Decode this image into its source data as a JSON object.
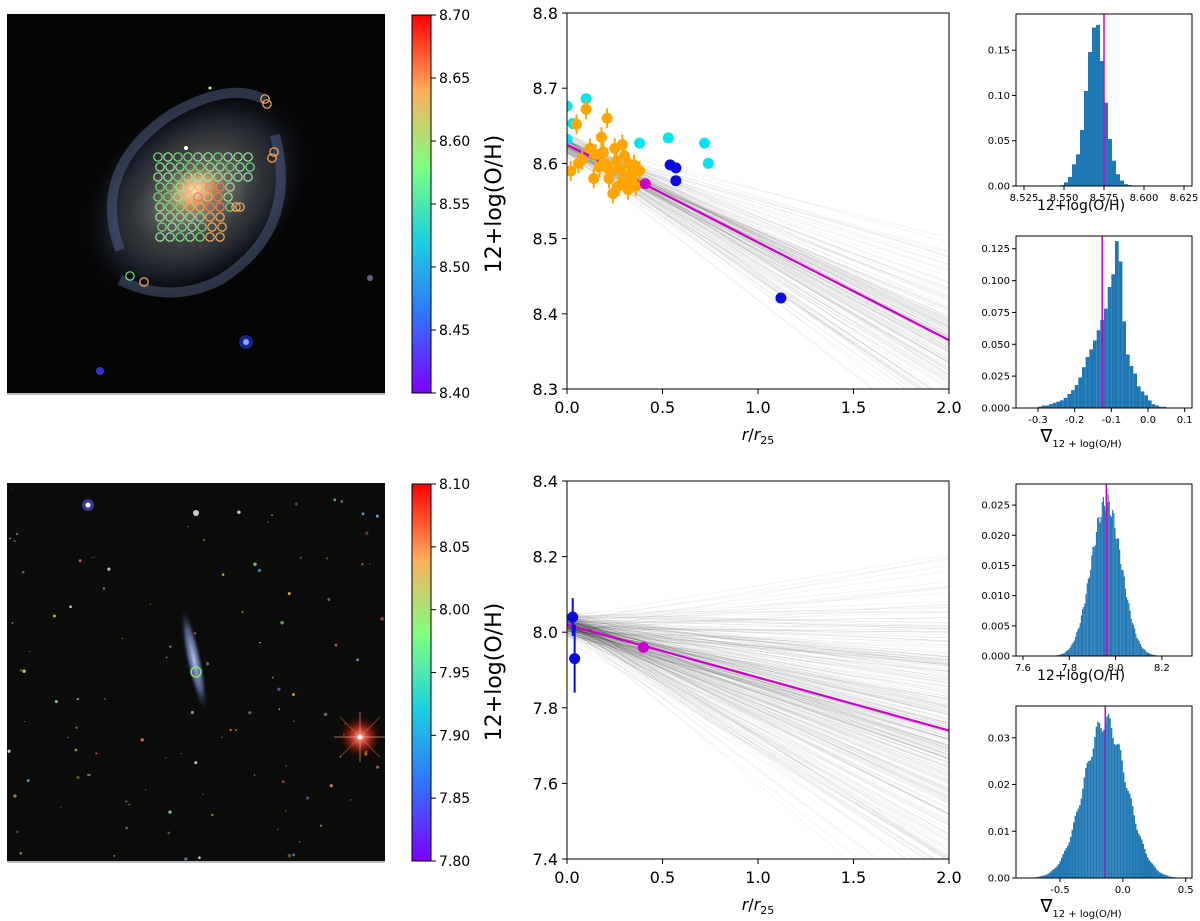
{
  "colorbar_top": {
    "label": "12+log(O/H)",
    "ticks": [
      "8.40",
      "8.45",
      "8.50",
      "8.55",
      "8.60",
      "8.65",
      "8.70"
    ],
    "range": [
      8.4,
      8.7
    ]
  },
  "colorbar_bottom": {
    "label": "12+log(O/H)",
    "ticks": [
      "7.80",
      "7.85",
      "7.90",
      "7.95",
      "8.00",
      "8.05",
      "8.10"
    ],
    "range": [
      7.8,
      8.1
    ]
  },
  "colors": {
    "magenta": "#cc00cc",
    "orange": "#ffa500",
    "cyan": "#00e5ee",
    "blue": "#0a0adf",
    "hist": "#1f77b4"
  },
  "chart_data": [
    {
      "id": "gradient_top",
      "type": "scatter",
      "xlabel": "r/r25",
      "ylabel": "",
      "xlim": [
        0,
        2.0
      ],
      "ylim": [
        8.3,
        8.8
      ],
      "xticks": [
        "0.0",
        "0.5",
        "1.0",
        "1.5",
        "2.0"
      ],
      "yticks": [
        "8.3",
        "8.4",
        "8.5",
        "8.6",
        "8.7",
        "8.8"
      ],
      "fit": {
        "intercept": 8.625,
        "slope": -0.13,
        "color": "magenta"
      },
      "mc_lines": {
        "intercept_mean": 8.625,
        "intercept_sd": 0.012,
        "slope_mean": -0.13,
        "slope_sd": 0.05,
        "count": 160
      },
      "binned_point": {
        "x": 0.41,
        "y": 8.573
      },
      "series": [
        {
          "name": "cyan",
          "points": [
            [
              0.0,
              8.676
            ],
            [
              0.1,
              8.686
            ],
            [
              0.03,
              8.653
            ],
            [
              0.53,
              8.634
            ],
            [
              0.72,
              8.627
            ],
            [
              0.74,
              8.6
            ],
            [
              0.38,
              8.627
            ],
            [
              0.0,
              8.632
            ]
          ]
        },
        {
          "name": "blue",
          "points": [
            [
              0.54,
              8.598
            ],
            [
              0.57,
              8.594
            ],
            [
              0.57,
              8.577
            ],
            [
              1.12,
              8.421
            ]
          ]
        },
        {
          "name": "orange",
          "points": [
            [
              0.05,
              8.652
            ],
            [
              0.1,
              8.672
            ],
            [
              0.12,
              8.62
            ],
            [
              0.15,
              8.612
            ],
            [
              0.18,
              8.635
            ],
            [
              0.2,
              8.6
            ],
            [
              0.21,
              8.66
            ],
            [
              0.22,
              8.58
            ],
            [
              0.25,
              8.62
            ],
            [
              0.26,
              8.603
            ],
            [
              0.28,
              8.592
            ],
            [
              0.3,
              8.61
            ],
            [
              0.3,
              8.575
            ],
            [
              0.32,
              8.6
            ],
            [
              0.33,
              8.585
            ],
            [
              0.35,
              8.598
            ],
            [
              0.27,
              8.57
            ],
            [
              0.24,
              8.56
            ],
            [
              0.32,
              8.565
            ],
            [
              0.34,
              8.58
            ],
            [
              0.17,
              8.595
            ],
            [
              0.08,
              8.605
            ],
            [
              0.02,
              8.59
            ],
            [
              0.06,
              8.6
            ],
            [
              0.14,
              8.58
            ],
            [
              0.38,
              8.59
            ],
            [
              0.29,
              8.625
            ],
            [
              0.19,
              8.615
            ],
            [
              0.36,
              8.57
            ],
            [
              0.23,
              8.59
            ]
          ]
        }
      ]
    },
    {
      "id": "hist_top_oh",
      "type": "bar",
      "xlabel": "12+log(O/H)",
      "xlim": [
        8.52,
        8.63
      ],
      "ylim": [
        0,
        0.19
      ],
      "xticks": [
        "8.525",
        "8.550",
        "8.575",
        "8.600",
        "8.625"
      ],
      "yticks": [
        "0.00",
        "0.05",
        "0.10",
        "0.15"
      ],
      "marker": 8.575,
      "bin_start": 8.5475,
      "bin_width": 0.0025,
      "values": [
        0.001,
        0.004,
        0.01,
        0.024,
        0.035,
        0.062,
        0.105,
        0.148,
        0.175,
        0.178,
        0.138,
        0.092,
        0.052,
        0.028,
        0.013,
        0.006,
        0.002,
        0.001
      ]
    },
    {
      "id": "hist_top_grad",
      "type": "bar",
      "xlabel": "∇12+log(O/H)",
      "xlim": [
        -0.36,
        0.12
      ],
      "ylim": [
        0,
        0.135
      ],
      "xticks": [
        "-0.3",
        "-0.2",
        "-0.1",
        "0.0",
        "0.1"
      ],
      "yticks": [
        "0.000",
        "0.025",
        "0.050",
        "0.075",
        "0.100",
        "0.125"
      ],
      "marker": -0.125,
      "bin_start": -0.3,
      "bin_width": 0.01,
      "values": [
        0.001,
        0.002,
        0.002,
        0.003,
        0.004,
        0.005,
        0.006,
        0.008,
        0.011,
        0.014,
        0.018,
        0.024,
        0.032,
        0.04,
        0.046,
        0.053,
        0.061,
        0.069,
        0.078,
        0.095,
        0.105,
        0.131,
        0.115,
        0.068,
        0.042,
        0.033,
        0.027,
        0.017,
        0.013,
        0.01,
        0.006,
        0.003,
        0.002,
        0.001,
        0.001
      ]
    },
    {
      "id": "gradient_bottom",
      "type": "scatter",
      "xlabel": "r/r25",
      "ylabel": "",
      "xlim": [
        0,
        2.0
      ],
      "ylim": [
        7.4,
        8.4
      ],
      "xticks": [
        "0.0",
        "0.5",
        "1.0",
        "1.5",
        "2.0"
      ],
      "yticks": [
        "7.4",
        "7.6",
        "7.8",
        "8.0",
        "8.2",
        "8.4"
      ],
      "fit": {
        "intercept": 8.02,
        "slope": -0.14,
        "color": "magenta"
      },
      "mc_lines": {
        "intercept_mean": 8.02,
        "intercept_sd": 0.025,
        "slope_mean": -0.14,
        "slope_sd": 0.17,
        "count": 320
      },
      "binned_point": {
        "x": 0.4,
        "y": 7.96
      },
      "series": [
        {
          "name": "blue",
          "points": [
            [
              0.03,
              8.04
            ],
            [
              0.04,
              7.93
            ]
          ],
          "errors": [
            0.05,
            0.09
          ]
        }
      ]
    },
    {
      "id": "hist_bottom_oh",
      "type": "bar",
      "xlabel": "12+log(O/H)",
      "xlim": [
        7.57,
        8.33
      ],
      "ylim": [
        0,
        0.0285
      ],
      "xticks": [
        "7.6",
        "7.8",
        "8.0",
        "8.2"
      ],
      "yticks": [
        "0.000",
        "0.005",
        "0.010",
        "0.015",
        "0.020",
        "0.025"
      ],
      "marker": 7.96,
      "dist": {
        "mean": 7.96,
        "sd": 0.065,
        "peak": 0.0255,
        "bin_width": 0.005,
        "from": 7.72,
        "to": 8.2
      }
    },
    {
      "id": "hist_bottom_grad",
      "type": "bar",
      "xlabel": "∇12+log(O/H)",
      "xlim": [
        -0.85,
        0.55
      ],
      "ylim": [
        0,
        0.0368
      ],
      "xticks": [
        "-0.5",
        "0.0",
        "0.5"
      ],
      "yticks": [
        "0.00",
        "0.01",
        "0.02",
        "0.03"
      ],
      "marker": -0.14,
      "dist": {
        "mean": -0.14,
        "sd": 0.17,
        "peak": 0.0335,
        "bin_width": 0.012,
        "from": -0.72,
        "to": 0.42
      }
    }
  ]
}
